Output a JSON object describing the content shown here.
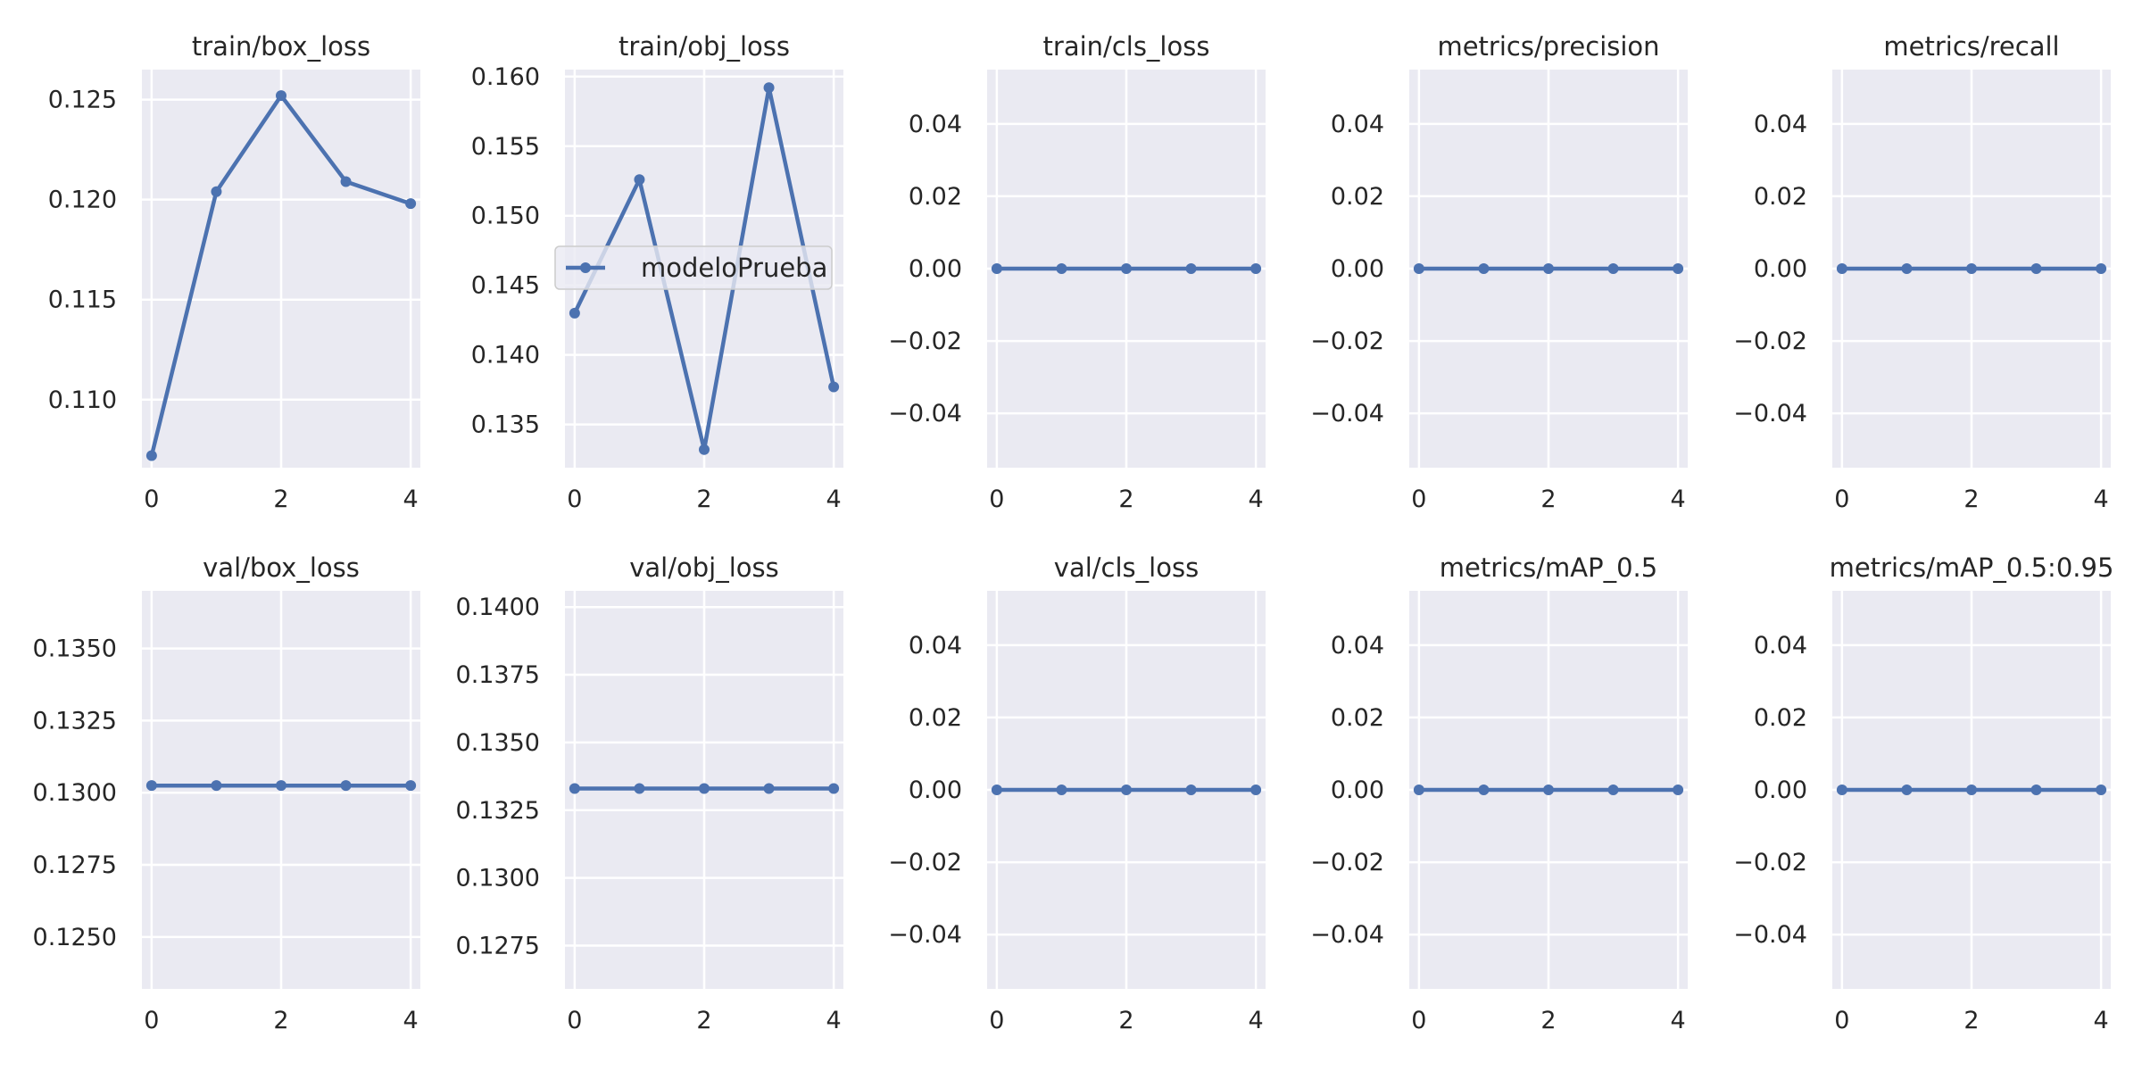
{
  "figure": {
    "background": "#ffffff",
    "axes_facecolor": "#eaeaf2",
    "grid_color": "#ffffff",
    "line_color": "#4c72b0"
  },
  "legend": {
    "label": "modeloPrueba",
    "location": "center-left of train/obj_loss panel"
  },
  "chart_data": [
    {
      "type": "line",
      "title": "train/box_loss",
      "x": [
        0,
        1,
        2,
        3,
        4
      ],
      "series": [
        {
          "name": "modeloPrueba",
          "values": [
            0.1072,
            0.1204,
            0.1252,
            0.1209,
            0.1198
          ]
        }
      ],
      "xticks": [
        0,
        2,
        4
      ],
      "xlim": [
        -0.15,
        4.15
      ],
      "yticks": [
        0.11,
        0.115,
        0.12,
        0.125
      ],
      "ytick_labels": [
        "0.110",
        "0.115",
        "0.120",
        "0.125"
      ],
      "ylim": [
        0.1066,
        0.1265
      ],
      "grid": true
    },
    {
      "type": "line",
      "title": "train/obj_loss",
      "x": [
        0,
        1,
        2,
        3,
        4
      ],
      "series": [
        {
          "name": "modeloPrueba",
          "values": [
            0.143,
            0.1526,
            0.1332,
            0.1592,
            0.1377
          ]
        }
      ],
      "xticks": [
        0,
        2,
        4
      ],
      "xlim": [
        -0.15,
        4.15
      ],
      "yticks": [
        0.135,
        0.14,
        0.145,
        0.15,
        0.155,
        0.16
      ],
      "ytick_labels": [
        "0.135",
        "0.140",
        "0.145",
        "0.150",
        "0.155",
        "0.160"
      ],
      "ylim": [
        0.1319,
        0.1605
      ],
      "grid": true
    },
    {
      "type": "line",
      "title": "train/cls_loss",
      "x": [
        0,
        1,
        2,
        3,
        4
      ],
      "series": [
        {
          "name": "modeloPrueba",
          "values": [
            0,
            0,
            0,
            0,
            0
          ]
        }
      ],
      "xticks": [
        0,
        2,
        4
      ],
      "xlim": [
        -0.15,
        4.15
      ],
      "yticks": [
        -0.04,
        -0.02,
        0,
        0.02,
        0.04
      ],
      "ytick_labels": [
        "−0.04",
        "−0.02",
        "0.00",
        "0.02",
        "0.04"
      ],
      "ylim": [
        -0.055,
        0.055
      ],
      "grid": true
    },
    {
      "type": "line",
      "title": "metrics/precision",
      "x": [
        0,
        1,
        2,
        3,
        4
      ],
      "series": [
        {
          "name": "modeloPrueba",
          "values": [
            0,
            0,
            0,
            0,
            0
          ]
        }
      ],
      "xticks": [
        0,
        2,
        4
      ],
      "xlim": [
        -0.15,
        4.15
      ],
      "yticks": [
        -0.04,
        -0.02,
        0,
        0.02,
        0.04
      ],
      "ytick_labels": [
        "−0.04",
        "−0.02",
        "0.00",
        "0.02",
        "0.04"
      ],
      "ylim": [
        -0.055,
        0.055
      ],
      "grid": true
    },
    {
      "type": "line",
      "title": "metrics/recall",
      "x": [
        0,
        1,
        2,
        3,
        4
      ],
      "series": [
        {
          "name": "modeloPrueba",
          "values": [
            0,
            0,
            0,
            0,
            0
          ]
        }
      ],
      "xticks": [
        0,
        2,
        4
      ],
      "xlim": [
        -0.15,
        4.15
      ],
      "yticks": [
        -0.04,
        -0.02,
        0,
        0.02,
        0.04
      ],
      "ytick_labels": [
        "−0.04",
        "−0.02",
        "0.00",
        "0.02",
        "0.04"
      ],
      "ylim": [
        -0.055,
        0.055
      ],
      "grid": true
    },
    {
      "type": "line",
      "title": "val/box_loss",
      "x": [
        0,
        1,
        2,
        3,
        4
      ],
      "series": [
        {
          "name": "modeloPrueba",
          "values": [
            0.13025,
            0.13025,
            0.13025,
            0.13025,
            0.13025
          ]
        }
      ],
      "xticks": [
        0,
        2,
        4
      ],
      "xlim": [
        -0.15,
        4.15
      ],
      "yticks": [
        0.125,
        0.1275,
        0.13,
        0.1325,
        0.135
      ],
      "ytick_labels": [
        "0.1250",
        "0.1275",
        "0.1300",
        "0.1325",
        "0.1350"
      ],
      "ylim": [
        0.1232,
        0.137
      ],
      "grid": true
    },
    {
      "type": "line",
      "title": "val/obj_loss",
      "x": [
        0,
        1,
        2,
        3,
        4
      ],
      "series": [
        {
          "name": "modeloPrueba",
          "values": [
            0.1333,
            0.1333,
            0.1333,
            0.1333,
            0.1333
          ]
        }
      ],
      "xticks": [
        0,
        2,
        4
      ],
      "xlim": [
        -0.15,
        4.15
      ],
      "yticks": [
        0.1275,
        0.13,
        0.1325,
        0.135,
        0.1375,
        0.14
      ],
      "ytick_labels": [
        "0.1275",
        "0.1300",
        "0.1325",
        "0.1350",
        "0.1375",
        "0.1400"
      ],
      "ylim": [
        0.1259,
        0.1406
      ],
      "grid": true
    },
    {
      "type": "line",
      "title": "val/cls_loss",
      "x": [
        0,
        1,
        2,
        3,
        4
      ],
      "series": [
        {
          "name": "modeloPrueba",
          "values": [
            0,
            0,
            0,
            0,
            0
          ]
        }
      ],
      "xticks": [
        0,
        2,
        4
      ],
      "xlim": [
        -0.15,
        4.15
      ],
      "yticks": [
        -0.04,
        -0.02,
        0,
        0.02,
        0.04
      ],
      "ytick_labels": [
        "−0.04",
        "−0.02",
        "0.00",
        "0.02",
        "0.04"
      ],
      "ylim": [
        -0.055,
        0.055
      ],
      "grid": true
    },
    {
      "type": "line",
      "title": "metrics/mAP_0.5",
      "x": [
        0,
        1,
        2,
        3,
        4
      ],
      "series": [
        {
          "name": "modeloPrueba",
          "values": [
            0,
            0,
            0,
            0,
            0
          ]
        }
      ],
      "xticks": [
        0,
        2,
        4
      ],
      "xlim": [
        -0.15,
        4.15
      ],
      "yticks": [
        -0.04,
        -0.02,
        0,
        0.02,
        0.04
      ],
      "ytick_labels": [
        "−0.04",
        "−0.02",
        "0.00",
        "0.02",
        "0.04"
      ],
      "ylim": [
        -0.055,
        0.055
      ],
      "grid": true
    },
    {
      "type": "line",
      "title": "metrics/mAP_0.5:0.95",
      "x": [
        0,
        1,
        2,
        3,
        4
      ],
      "series": [
        {
          "name": "modeloPrueba",
          "values": [
            0,
            0,
            0,
            0,
            0
          ]
        }
      ],
      "xticks": [
        0,
        2,
        4
      ],
      "xlim": [
        -0.15,
        4.15
      ],
      "yticks": [
        -0.04,
        -0.02,
        0,
        0.02,
        0.04
      ],
      "ytick_labels": [
        "−0.04",
        "−0.02",
        "0.00",
        "0.02",
        "0.04"
      ],
      "ylim": [
        -0.055,
        0.055
      ],
      "grid": true
    }
  ]
}
